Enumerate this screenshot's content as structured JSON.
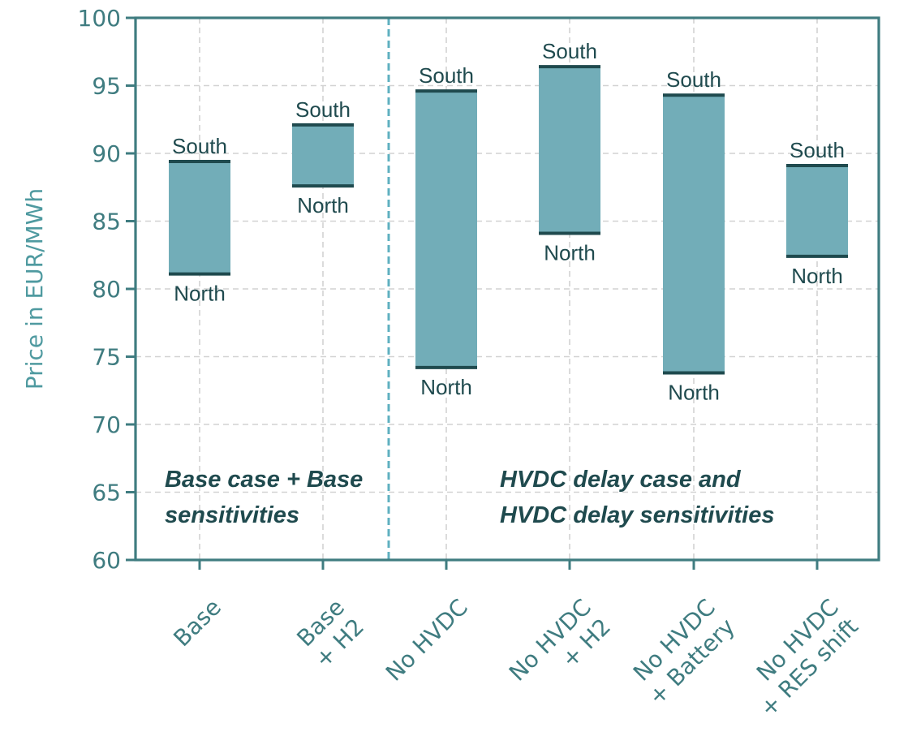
{
  "chart_data": {
    "type": "bar",
    "subtype": "floating-range",
    "ylabel": "Price in EUR/MWh",
    "ylim": [
      60,
      100
    ],
    "yticks": [
      60,
      65,
      70,
      75,
      80,
      85,
      90,
      95,
      100
    ],
    "grid": true,
    "categories": [
      [
        "Base"
      ],
      [
        "Base",
        "+ H2"
      ],
      [
        "No HVDC"
      ],
      [
        "No HVDC",
        "+ H2"
      ],
      [
        "No HVDC",
        "+ Battery"
      ],
      [
        "No HVDC",
        "+ RES shift"
      ]
    ],
    "series": [
      {
        "name": "South",
        "values": [
          89.4,
          92.1,
          94.6,
          96.4,
          94.3,
          89.1
        ]
      },
      {
        "name": "North",
        "values": [
          81.1,
          87.6,
          74.2,
          84.1,
          73.8,
          82.4
        ]
      }
    ],
    "upper_label": "South",
    "lower_label": "North",
    "group_labels": [
      [
        "Base case + Base",
        "sensitivities"
      ],
      [
        "HVDC delay case and",
        "HVDC delay sensitivities"
      ]
    ],
    "colors": {
      "bar": "#72adb8",
      "cap": "#1f4a4e",
      "axis": "#3f7c80",
      "grid": "#d2d2d2",
      "divider": "#5fb0c0"
    }
  }
}
